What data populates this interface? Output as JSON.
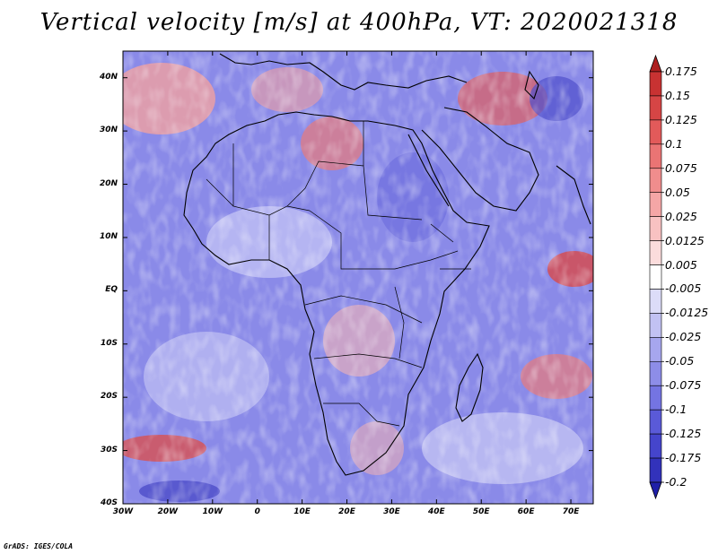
{
  "title": "Vertical velocity [m/s] at 400hPa, VT: 2020021318",
  "map": {
    "lat_labels": [
      "40N",
      "30N",
      "20N",
      "10N",
      "EQ",
      "10S",
      "20S",
      "30S",
      "40S"
    ],
    "lon_labels": [
      "30W",
      "20W",
      "10W",
      "0",
      "10E",
      "20E",
      "30E",
      "40E",
      "50E",
      "60E",
      "70E"
    ],
    "lon_range": [
      -30,
      75
    ],
    "lat_range": [
      -40,
      45
    ]
  },
  "colorbar": {
    "levels": [
      "0.175",
      "0.15",
      "0.125",
      "0.1",
      "0.075",
      "0.05",
      "0.025",
      "0.0125",
      "0.005",
      "-0.005",
      "-0.0125",
      "-0.025",
      "-0.05",
      "-0.075",
      "-0.1",
      "-0.125",
      "-0.175",
      "-0.2"
    ],
    "colors": [
      "#ad1f1f",
      "#c83232",
      "#d64545",
      "#e25a5a",
      "#ea7474",
      "#f08d8d",
      "#f5a6a6",
      "#f8c2c2",
      "#fbdcdc",
      "#ffffff",
      "#dcdcf8",
      "#c2c2f3",
      "#a6a6ee",
      "#8d8de8",
      "#7474e2",
      "#5a5ad8",
      "#4545cc",
      "#3232bb",
      "#1f1fa8"
    ]
  },
  "credit": "GrADS: IGES/COLA"
}
